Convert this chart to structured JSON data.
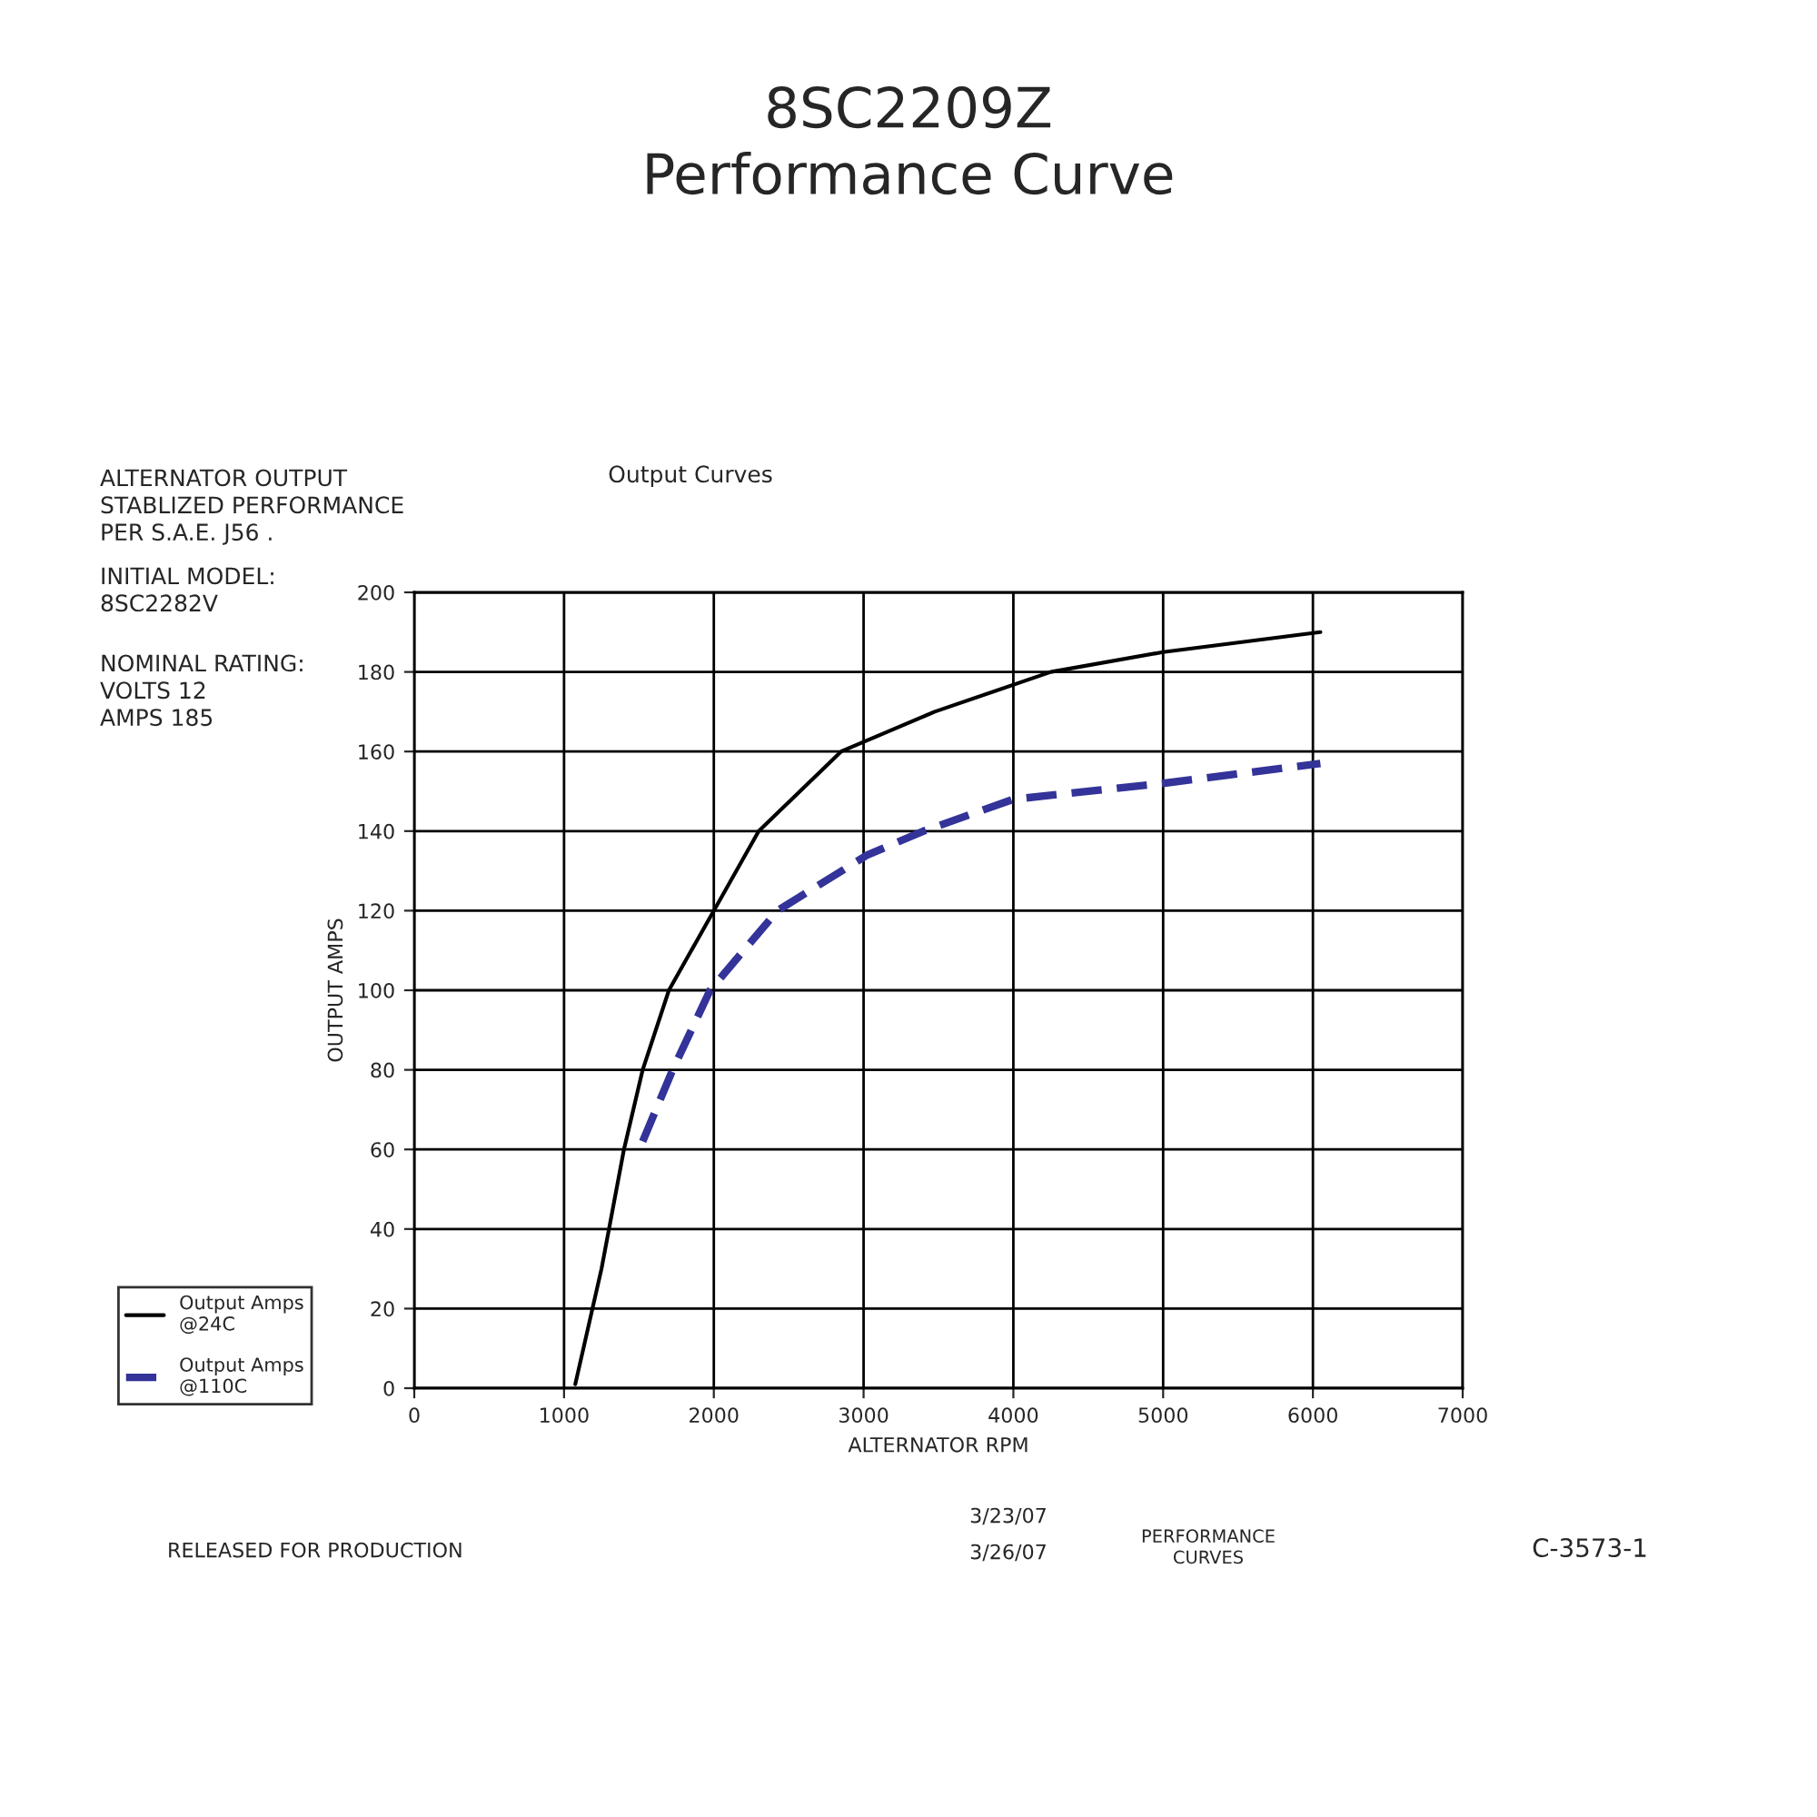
{
  "chart_data": {
    "type": "line",
    "title": "8SC2209Z\nPerformance Curve",
    "subtitle": "Output Curves",
    "xlabel": "ALTERNATOR RPM",
    "ylabel": "OUTPUT AMPS",
    "series": [
      {
        "name": "Output Amps\n@24C",
        "color": "#000000",
        "line_style": "solid",
        "x": [
          1075,
          1250,
          1400,
          1525,
          1700,
          2000,
          2300,
          2850,
          3475,
          4250,
          5000,
          6050
        ],
        "values": [
          1,
          30,
          60,
          80,
          100,
          120,
          140,
          160,
          170,
          180,
          185,
          190
        ]
      },
      {
        "name": "Output Amps\n@110C",
        "color": "#333399",
        "line_style": "dashed",
        "x": [
          1525,
          1725,
          1975,
          2425,
          3025,
          3400,
          4000,
          5000,
          6050
        ],
        "values": [
          62,
          80,
          100,
          120,
          134,
          140,
          148,
          152,
          157
        ]
      }
    ],
    "xlim": [
      0,
      7000
    ],
    "xticks": [
      0,
      1000,
      2000,
      3000,
      4000,
      5000,
      6000,
      7000
    ],
    "ylim": [
      0,
      200
    ],
    "yticks": [
      0,
      20,
      40,
      60,
      80,
      100,
      120,
      140,
      160,
      180,
      200
    ],
    "grid": true,
    "legend": "bottom left",
    "annotations": [
      "ALTERNATOR OUTPUT\nSTABLIZED PERFORMANCE\nPER S.A.E. J56 .",
      "INITIAL MODEL:\n8SC2282V",
      "NOMINAL RATING:\nVOLTS 12\nAMPS 185",
      "C-3573-1",
      "RELEASED FOR PRODUCTION",
      "PERFORMANCE\nCURVES",
      "3/23/07",
      "3/26/07"
    ]
  }
}
